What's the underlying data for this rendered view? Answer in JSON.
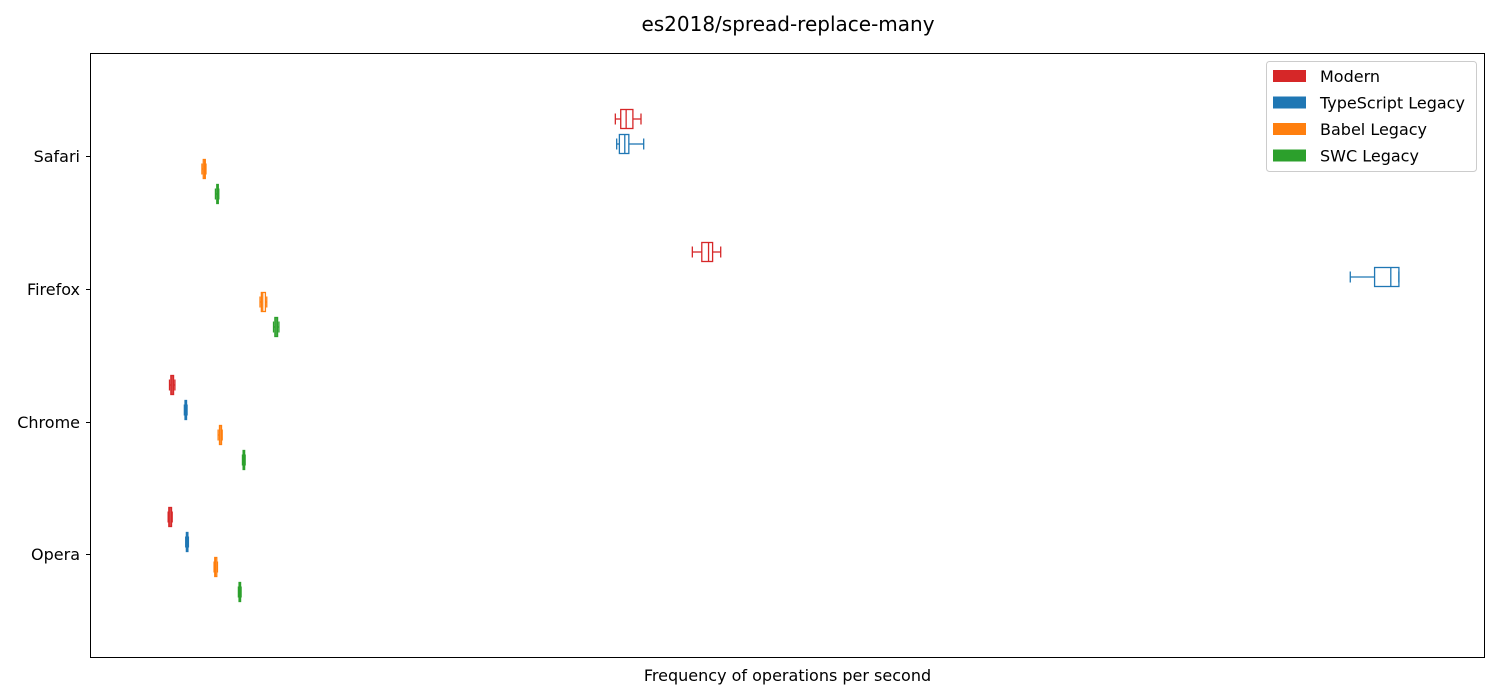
{
  "chart_data": {
    "type": "boxplot",
    "orientation": "horizontal",
    "title": "es2018/spread-replace-many",
    "xlabel": "Frequency of operations per second",
    "ylabel": "",
    "x_ticks_shown": false,
    "xlim": [
      0,
      1000
    ],
    "grid": false,
    "legend_position": "top-right",
    "categories": [
      "Safari",
      "Firefox",
      "Chrome",
      "Opera"
    ],
    "series": [
      {
        "name": "Modern",
        "color": "#d62728",
        "boxes": [
          {
            "whislo": 377,
            "q1": 381,
            "med": 385,
            "q3": 390,
            "whishi": 396
          },
          {
            "whislo": 434,
            "q1": 441,
            "med": 446,
            "q3": 449,
            "whishi": 455
          },
          {
            "whislo": 47,
            "q1": 48,
            "med": 49,
            "q3": 50,
            "whishi": 51
          },
          {
            "whislo": 46,
            "q1": 46.5,
            "med": 47.5,
            "q3": 48.5,
            "whishi": 49
          }
        ]
      },
      {
        "name": "TypeScript Legacy",
        "color": "#1f77b4",
        "boxes": [
          {
            "whislo": 378,
            "q1": 380,
            "med": 384,
            "q3": 387,
            "whishi": 398
          },
          {
            "whislo": 921,
            "q1": 939,
            "med": 951,
            "q3": 957,
            "whishi": 957
          },
          {
            "whislo": 58,
            "q1": 58.5,
            "med": 59,
            "q3": 59.5,
            "whishi": 60
          },
          {
            "whislo": 59,
            "q1": 59.5,
            "med": 60,
            "q3": 60.5,
            "whishi": 61
          }
        ]
      },
      {
        "name": "Babel Legacy",
        "color": "#ff7f0e",
        "boxes": [
          {
            "whislo": 71,
            "q1": 72,
            "med": 73,
            "q3": 73.5,
            "whishi": 74
          },
          {
            "whislo": 114,
            "q1": 115,
            "med": 116,
            "q3": 118,
            "whishi": 119
          },
          {
            "whislo": 83,
            "q1": 84,
            "med": 84.5,
            "q3": 85.5,
            "whishi": 86
          },
          {
            "whislo": 80,
            "q1": 80.5,
            "med": 81,
            "q3": 82,
            "whishi": 82.5
          }
        ]
      },
      {
        "name": "SWC Legacy",
        "color": "#2ca02c",
        "boxes": [
          {
            "whislo": 81,
            "q1": 82,
            "med": 82.5,
            "q3": 83,
            "whishi": 83.5
          },
          {
            "whislo": 124,
            "q1": 125,
            "med": 126,
            "q3": 127,
            "whishi": 128
          },
          {
            "whislo": 101,
            "q1": 101.5,
            "med": 102,
            "q3": 102.5,
            "whishi": 103
          },
          {
            "whislo": 98,
            "q1": 98.5,
            "med": 99,
            "q3": 99.5,
            "whishi": 100
          }
        ]
      }
    ]
  }
}
